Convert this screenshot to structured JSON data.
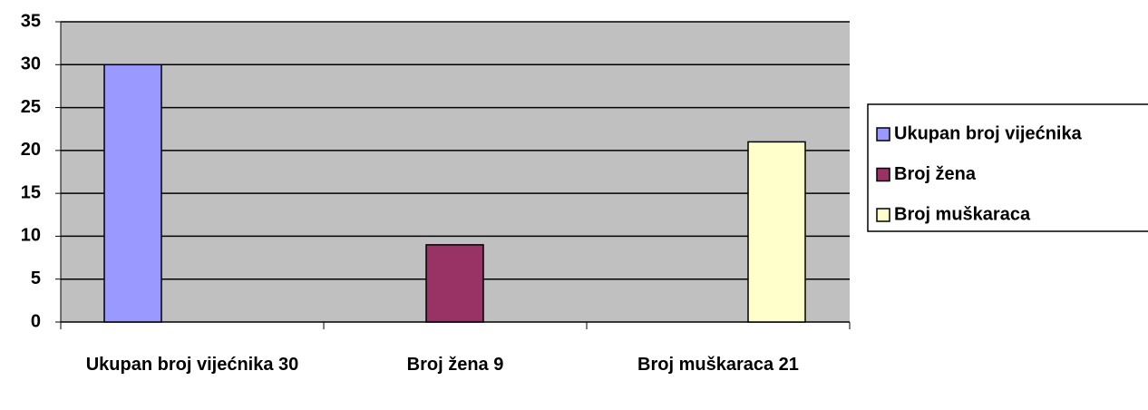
{
  "chart_data": {
    "type": "bar",
    "categories": [
      "Ukupan broj vijećnika 30",
      "Broj žena 9",
      "Broj muškaraca 21"
    ],
    "series": [
      {
        "name": "Ukupan broj vijećnika",
        "color": "#9999ff",
        "values": [
          30,
          null,
          null
        ]
      },
      {
        "name": "Broj žena",
        "color": "#993366",
        "values": [
          null,
          9,
          null
        ]
      },
      {
        "name": "Broj muškaraca",
        "color": "#ffffcc",
        "values": [
          null,
          null,
          21
        ]
      }
    ],
    "ylim": [
      0,
      35
    ],
    "yticks": [
      0,
      5,
      10,
      15,
      20,
      25,
      30,
      35
    ],
    "grid": true,
    "legend": "right"
  }
}
